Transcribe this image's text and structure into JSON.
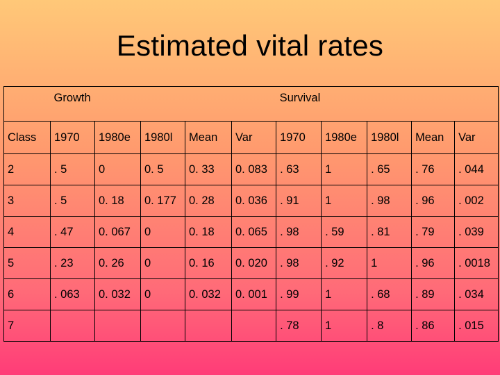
{
  "slide": {
    "title": "Estimated vital rates"
  },
  "table": {
    "group_headers": {
      "growth": "Growth",
      "survival": "Survival"
    },
    "columns": [
      "Class",
      "1970",
      "1980e",
      "1980l",
      "Mean",
      "Var",
      "1970",
      "1980e",
      "1980l",
      "Mean",
      "Var"
    ],
    "rows": [
      [
        "2",
        ". 5",
        "0",
        "0. 5",
        "0. 33",
        "0. 083",
        ". 63",
        "1",
        ". 65",
        ". 76",
        ". 044"
      ],
      [
        "3",
        ". 5",
        "0. 18",
        "0. 177",
        "0. 28",
        "0. 036",
        ". 91",
        "1",
        ". 98",
        ". 96",
        ". 002"
      ],
      [
        "4",
        ". 47",
        "0. 067",
        "0",
        "0. 18",
        "0. 065",
        ". 98",
        ". 59",
        ". 81",
        ". 79",
        ". 039"
      ],
      [
        "5",
        ". 23",
        "0. 26",
        "0",
        "0. 16",
        "0. 020",
        ". 98",
        ". 92",
        "1",
        ". 96",
        ". 0018"
      ],
      [
        "6",
        ". 063",
        "0. 032",
        "0",
        "0. 032",
        "0. 001",
        ". 99",
        "1",
        ". 68",
        ". 89",
        ". 034"
      ],
      [
        "7",
        "",
        "",
        "",
        "",
        "",
        ". 78",
        "1",
        ". 8",
        ". 86",
        ". 015"
      ]
    ]
  }
}
